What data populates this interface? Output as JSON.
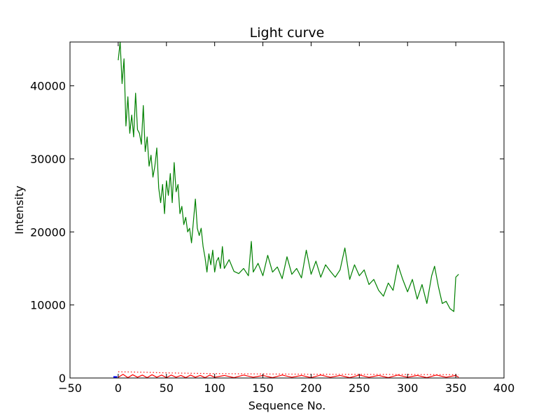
{
  "chart_data": {
    "type": "line",
    "title": "Light curve",
    "xlabel": "Sequence No.",
    "ylabel": "Intensity",
    "xlim": [
      -50,
      400
    ],
    "ylim": [
      0,
      46000
    ],
    "xticks": [
      -50,
      0,
      50,
      100,
      150,
      200,
      250,
      300,
      350,
      400
    ],
    "xtick_labels": [
      "−50",
      "0",
      "50",
      "100",
      "150",
      "200",
      "250",
      "300",
      "350",
      "400"
    ],
    "yticks": [
      0,
      10000,
      20000,
      30000,
      40000
    ],
    "ytick_labels": [
      "0",
      "10000",
      "20000",
      "30000",
      "40000"
    ],
    "grid": false,
    "legend": "none",
    "series": [
      {
        "color": "#008000",
        "style": "solid",
        "points": [
          [
            0,
            43500
          ],
          [
            2,
            46000
          ],
          [
            4,
            40300
          ],
          [
            6,
            43700
          ],
          [
            8,
            34500
          ],
          [
            10,
            38500
          ],
          [
            12,
            33500
          ],
          [
            14,
            36000
          ],
          [
            16,
            33000
          ],
          [
            18,
            39000
          ],
          [
            20,
            34000
          ],
          [
            22,
            33500
          ],
          [
            24,
            32000
          ],
          [
            26,
            37300
          ],
          [
            28,
            31000
          ],
          [
            30,
            33000
          ],
          [
            32,
            29000
          ],
          [
            34,
            30500
          ],
          [
            36,
            27500
          ],
          [
            38,
            29000
          ],
          [
            40,
            31500
          ],
          [
            42,
            26000
          ],
          [
            44,
            24000
          ],
          [
            46,
            26500
          ],
          [
            48,
            22500
          ],
          [
            50,
            27000
          ],
          [
            52,
            25000
          ],
          [
            54,
            28000
          ],
          [
            56,
            24000
          ],
          [
            58,
            29500
          ],
          [
            60,
            25500
          ],
          [
            62,
            26500
          ],
          [
            64,
            22500
          ],
          [
            66,
            23500
          ],
          [
            68,
            21000
          ],
          [
            70,
            22000
          ],
          [
            72,
            20000
          ],
          [
            74,
            20500
          ],
          [
            76,
            18500
          ],
          [
            78,
            21500
          ],
          [
            80,
            24500
          ],
          [
            82,
            20500
          ],
          [
            84,
            19500
          ],
          [
            86,
            20500
          ],
          [
            88,
            18000
          ],
          [
            90,
            16500
          ],
          [
            92,
            14500
          ],
          [
            94,
            17000
          ],
          [
            96,
            15500
          ],
          [
            98,
            17500
          ],
          [
            100,
            14500
          ],
          [
            102,
            16000
          ],
          [
            104,
            16500
          ],
          [
            106,
            15000
          ],
          [
            108,
            18000
          ],
          [
            110,
            15000
          ],
          [
            115,
            16200
          ],
          [
            120,
            14600
          ],
          [
            125,
            14300
          ],
          [
            130,
            15000
          ],
          [
            135,
            14000
          ],
          [
            138,
            18700
          ],
          [
            140,
            14500
          ],
          [
            145,
            15700
          ],
          [
            150,
            14000
          ],
          [
            155,
            16800
          ],
          [
            160,
            14500
          ],
          [
            165,
            15200
          ],
          [
            170,
            13600
          ],
          [
            175,
            16600
          ],
          [
            180,
            14200
          ],
          [
            185,
            15000
          ],
          [
            190,
            13700
          ],
          [
            195,
            17500
          ],
          [
            200,
            14200
          ],
          [
            205,
            16000
          ],
          [
            210,
            13800
          ],
          [
            215,
            15500
          ],
          [
            220,
            14600
          ],
          [
            225,
            13800
          ],
          [
            230,
            14800
          ],
          [
            235,
            17800
          ],
          [
            240,
            13500
          ],
          [
            245,
            15500
          ],
          [
            250,
            14000
          ],
          [
            255,
            14800
          ],
          [
            260,
            12800
          ],
          [
            265,
            13500
          ],
          [
            270,
            12000
          ],
          [
            275,
            11200
          ],
          [
            280,
            13000
          ],
          [
            285,
            12000
          ],
          [
            290,
            15500
          ],
          [
            295,
            13500
          ],
          [
            300,
            11800
          ],
          [
            305,
            13500
          ],
          [
            310,
            10800
          ],
          [
            315,
            12800
          ],
          [
            320,
            10200
          ],
          [
            325,
            14000
          ],
          [
            328,
            15300
          ],
          [
            332,
            12500
          ],
          [
            336,
            10200
          ],
          [
            340,
            10500
          ],
          [
            344,
            9500
          ],
          [
            348,
            9100
          ],
          [
            350,
            13800
          ],
          [
            353,
            14200
          ]
        ]
      },
      {
        "color": "#ff0000",
        "style": "dotted",
        "points": [
          [
            0,
            850
          ],
          [
            25,
            800
          ],
          [
            50,
            700
          ],
          [
            75,
            650
          ],
          [
            100,
            600
          ],
          [
            150,
            550
          ],
          [
            200,
            520
          ],
          [
            250,
            500
          ],
          [
            300,
            480
          ],
          [
            353,
            450
          ]
        ]
      },
      {
        "color": "#ff0000",
        "style": "solid",
        "points": [
          [
            0,
            100
          ],
          [
            5,
            500
          ],
          [
            10,
            50
          ],
          [
            15,
            450
          ],
          [
            20,
            100
          ],
          [
            25,
            400
          ],
          [
            30,
            50
          ],
          [
            35,
            450
          ],
          [
            40,
            100
          ],
          [
            45,
            400
          ],
          [
            50,
            50
          ],
          [
            55,
            400
          ],
          [
            60,
            100
          ],
          [
            65,
            350
          ],
          [
            70,
            50
          ],
          [
            75,
            400
          ],
          [
            80,
            100
          ],
          [
            85,
            350
          ],
          [
            90,
            50
          ],
          [
            95,
            400
          ],
          [
            100,
            100
          ],
          [
            110,
            350
          ],
          [
            120,
            50
          ],
          [
            130,
            400
          ],
          [
            140,
            100
          ],
          [
            150,
            350
          ],
          [
            160,
            50
          ],
          [
            170,
            400
          ],
          [
            180,
            100
          ],
          [
            190,
            350
          ],
          [
            200,
            50
          ],
          [
            210,
            400
          ],
          [
            220,
            100
          ],
          [
            230,
            350
          ],
          [
            240,
            50
          ],
          [
            250,
            400
          ],
          [
            260,
            100
          ],
          [
            270,
            350
          ],
          [
            280,
            50
          ],
          [
            290,
            400
          ],
          [
            300,
            100
          ],
          [
            310,
            350
          ],
          [
            320,
            50
          ],
          [
            330,
            400
          ],
          [
            340,
            100
          ],
          [
            350,
            350
          ],
          [
            353,
            100
          ]
        ]
      },
      {
        "color": "#0000ff",
        "style": "solid",
        "points": [
          [
            -5,
            100
          ],
          [
            -1,
            100
          ]
        ]
      }
    ]
  }
}
